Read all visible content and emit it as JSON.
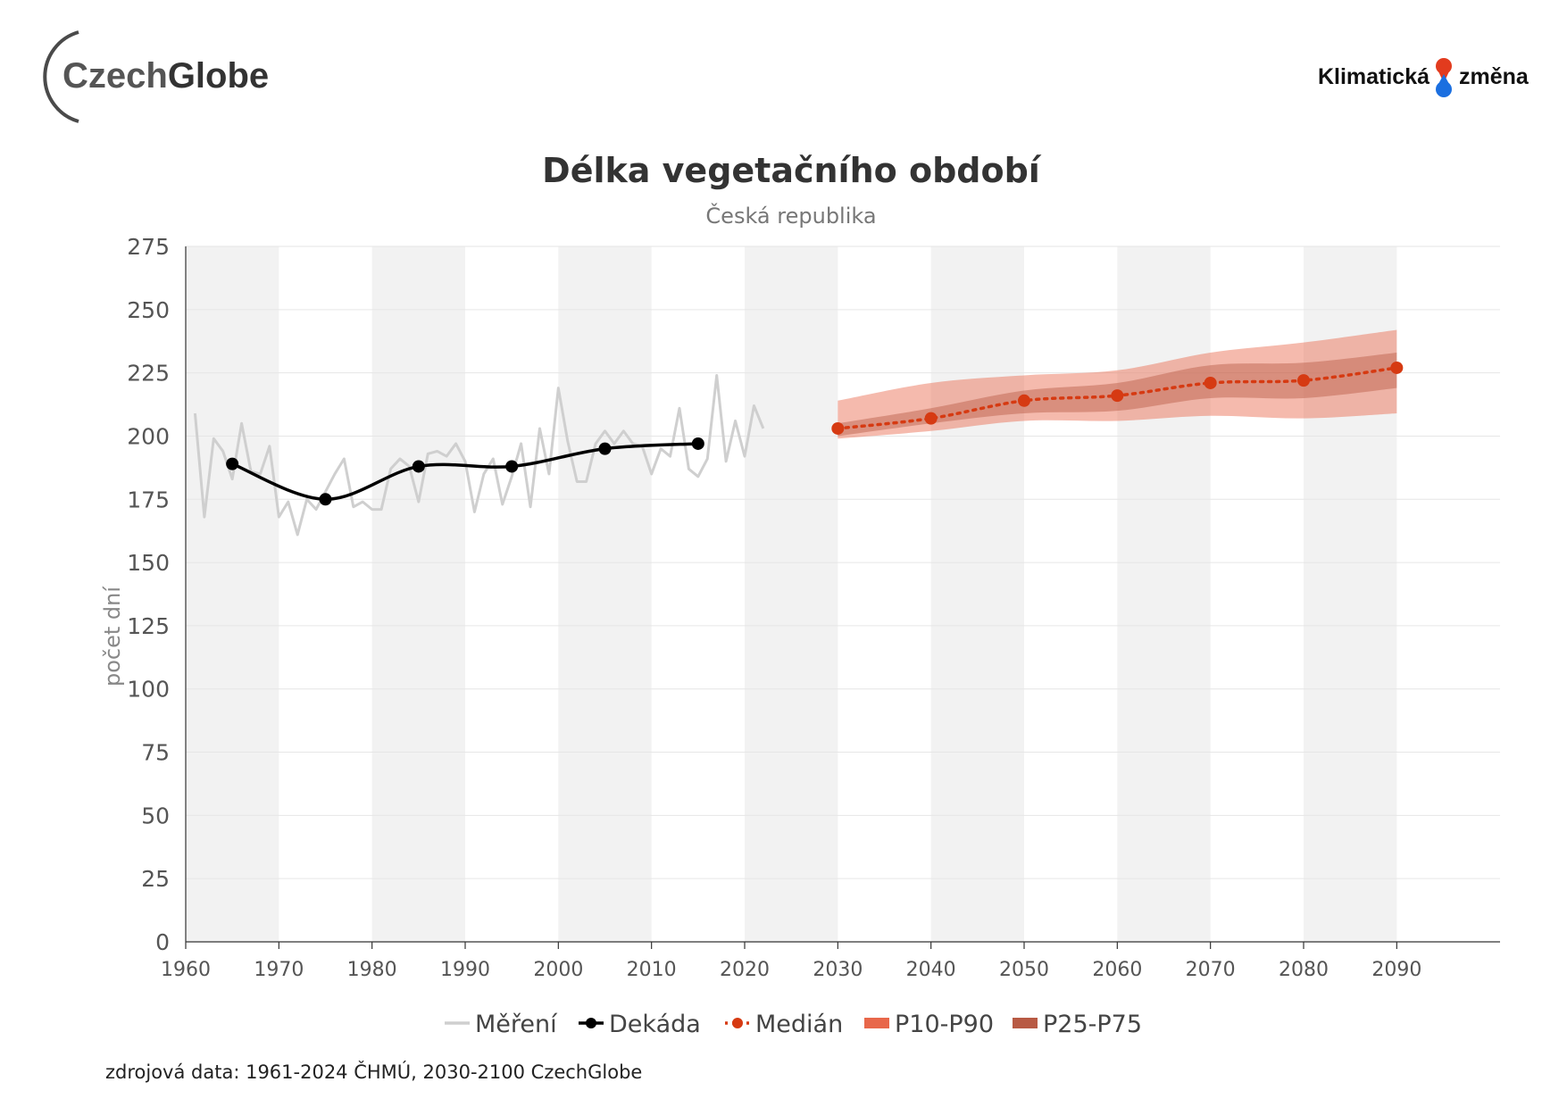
{
  "branding": {
    "left_logo": "CzechGlobe",
    "left_logo_parts": [
      "Czech",
      "Globe"
    ],
    "right_logo_left": "Klimatická",
    "right_logo_right": "změna"
  },
  "source_note": "zdrojová data: 1961-2024 ČHMÚ, 2030-2100 CzechGlobe",
  "colors": {
    "measured": "#cfcfcf",
    "decade": "#000000",
    "median": "#d63a12",
    "p10_p90": "#e8674a",
    "p25_p75": "#b85a44",
    "band_stripe": "#f2f2f2",
    "grid": "#e6e6e6"
  },
  "chart_data": {
    "type": "line",
    "title": "Délka vegetačního období",
    "subtitle": "Česká republika",
    "ylabel": "počet dní",
    "xlabel": "",
    "xlim": [
      1960,
      2100
    ],
    "ylim": [
      0,
      275
    ],
    "x_ticks": [
      1960,
      1970,
      1980,
      1990,
      2000,
      2010,
      2020,
      2030,
      2040,
      2050,
      2060,
      2070,
      2080,
      2090
    ],
    "y_ticks": [
      0,
      25,
      50,
      75,
      100,
      125,
      150,
      175,
      200,
      225,
      250,
      275
    ],
    "shaded_decades": [
      [
        1960,
        1970
      ],
      [
        1980,
        1990
      ],
      [
        2000,
        2010
      ],
      [
        2020,
        2030
      ],
      [
        2040,
        2050
      ],
      [
        2060,
        2070
      ],
      [
        2080,
        2090
      ]
    ],
    "legend": [
      {
        "key": "measured",
        "label": "Měření"
      },
      {
        "key": "decade",
        "label": "Dekáda"
      },
      {
        "key": "median",
        "label": "Medián"
      },
      {
        "key": "p10_p90",
        "label": "P10-P90"
      },
      {
        "key": "p25_p75",
        "label": "P25-P75"
      }
    ],
    "series": [
      {
        "name": "Měření",
        "key": "measured",
        "x": [
          1961,
          1962,
          1963,
          1964,
          1965,
          1966,
          1967,
          1968,
          1969,
          1970,
          1971,
          1972,
          1973,
          1974,
          1975,
          1976,
          1977,
          1978,
          1979,
          1980,
          1981,
          1982,
          1983,
          1984,
          1985,
          1986,
          1987,
          1988,
          1989,
          1990,
          1991,
          1992,
          1993,
          1994,
          1995,
          1996,
          1997,
          1998,
          1999,
          2000,
          2001,
          2002,
          2003,
          2004,
          2005,
          2006,
          2007,
          2008,
          2009,
          2010,
          2011,
          2012,
          2013,
          2014,
          2015,
          2016,
          2017,
          2018,
          2019,
          2020,
          2021,
          2022,
          2023
        ],
        "values": [
          209,
          168,
          199,
          194,
          183,
          205,
          186,
          185,
          196,
          168,
          174,
          161,
          175,
          171,
          178,
          185,
          191,
          172,
          174,
          171,
          171,
          187,
          191,
          188,
          174,
          193,
          194,
          192,
          197,
          190,
          170,
          185,
          191,
          173,
          184,
          197,
          172,
          203,
          185,
          219,
          198,
          182,
          182,
          197,
          202,
          197,
          202,
          197,
          196,
          185,
          195,
          192,
          211,
          187,
          184,
          191,
          224,
          190,
          206,
          192,
          212,
          203,
          null
        ]
      },
      {
        "name": "Dekáda",
        "key": "decade",
        "x": [
          1965,
          1975,
          1985,
          1995,
          2005,
          2015
        ],
        "values": [
          189,
          175,
          188,
          188,
          195,
          197
        ]
      },
      {
        "name": "Medián",
        "key": "median",
        "x": [
          2030,
          2040,
          2050,
          2060,
          2070,
          2080,
          2090
        ],
        "values": [
          203,
          207,
          214,
          216,
          221,
          222,
          227
        ]
      },
      {
        "name": "P10-P90",
        "key": "p10_p90",
        "x": [
          2030,
          2040,
          2050,
          2060,
          2070,
          2080,
          2090
        ],
        "low": [
          199,
          202,
          206,
          206,
          208,
          207,
          209
        ],
        "high": [
          214,
          221,
          224,
          226,
          233,
          237,
          242
        ]
      },
      {
        "name": "P25-P75",
        "key": "p25_p75",
        "x": [
          2030,
          2040,
          2050,
          2060,
          2070,
          2080,
          2090
        ],
        "low": [
          200,
          205,
          209,
          210,
          215,
          215,
          219
        ],
        "high": [
          205,
          211,
          218,
          221,
          228,
          229,
          233
        ]
      }
    ]
  }
}
